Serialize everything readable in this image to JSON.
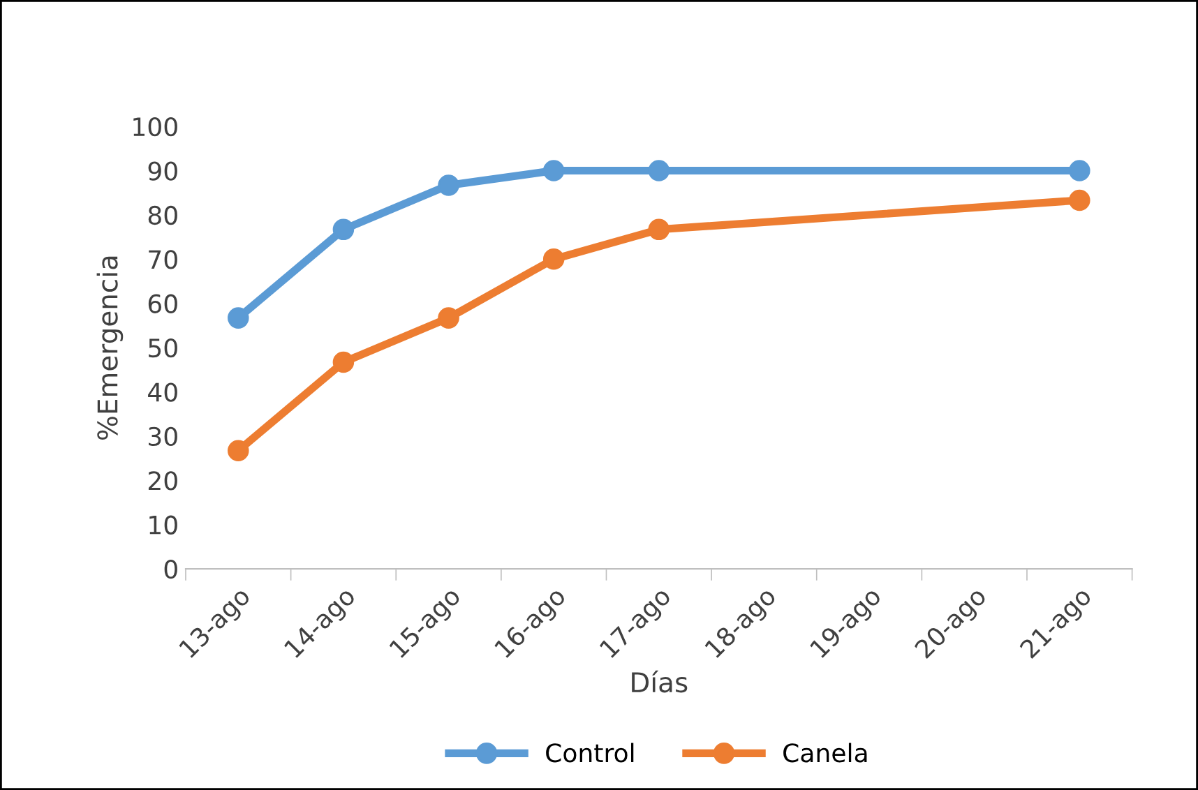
{
  "chart_data": {
    "type": "line",
    "xlabel": "Días",
    "ylabel": "%Emergencia",
    "categories": [
      "13-ago",
      "14-ago",
      "15-ago",
      "16-ago",
      "17-ago",
      "18-ago",
      "19-ago",
      "20-ago",
      "21-ago"
    ],
    "series": [
      {
        "name": "Control",
        "color": "#5b9bd5",
        "values": [
          56.7,
          76.7,
          86.7,
          90,
          90,
          null,
          null,
          null,
          90
        ]
      },
      {
        "name": "Canela",
        "color": "#ed7d31",
        "values": [
          26.7,
          46.7,
          56.7,
          70,
          76.7,
          null,
          null,
          null,
          83.3
        ]
      }
    ],
    "ylim": [
      0,
      100
    ],
    "yticks": [
      0,
      10,
      20,
      30,
      40,
      50,
      60,
      70,
      80,
      90,
      100
    ],
    "grid": false,
    "legend": "bottom",
    "marker": "circle",
    "line_style": "solid"
  }
}
